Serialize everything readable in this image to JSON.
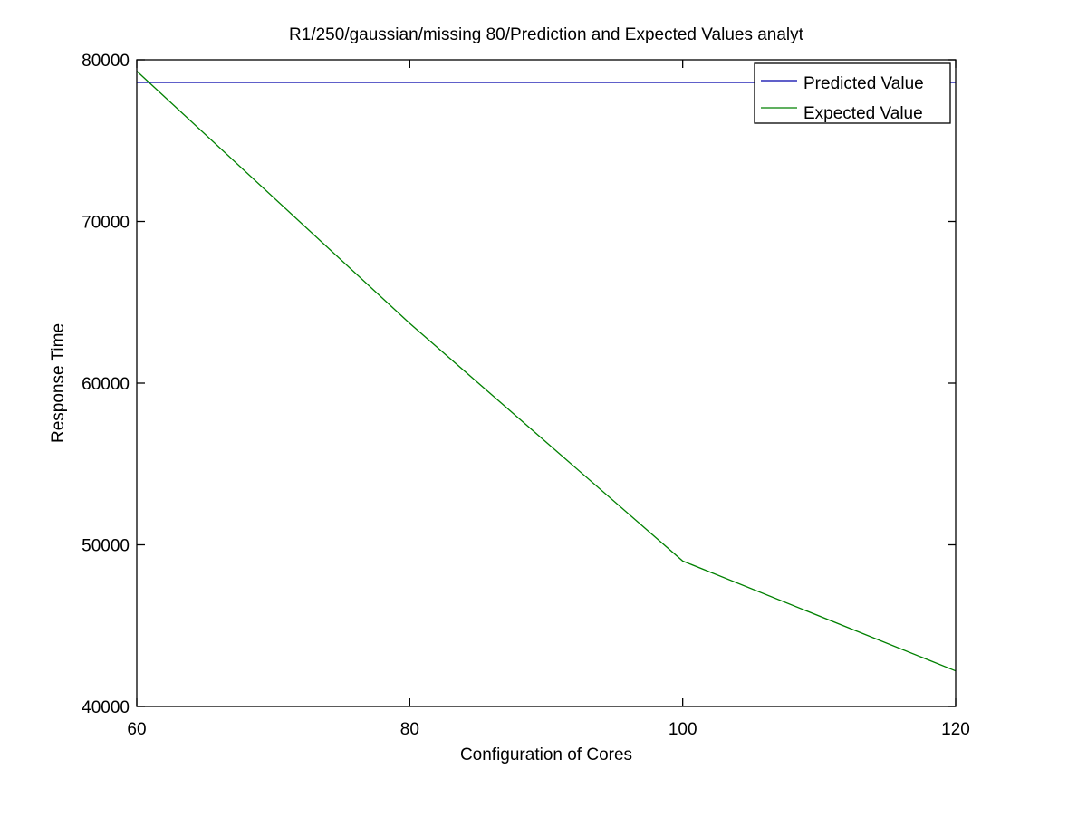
{
  "chart_data": {
    "type": "line",
    "title": "R1/250/gaussian/missing 80/Prediction and Expected Values analyt",
    "xlabel": "Configuration of Cores",
    "ylabel": "Response Time",
    "xlim": [
      60,
      120
    ],
    "ylim": [
      40000,
      80000
    ],
    "xticks": [
      60,
      80,
      100,
      120
    ],
    "yticks": [
      40000,
      50000,
      60000,
      70000,
      80000
    ],
    "xtick_labels": [
      "60",
      "80",
      "100",
      "120"
    ],
    "ytick_labels": [
      "40000",
      "50000",
      "60000",
      "70000",
      "80000"
    ],
    "grid": false,
    "legend_position": "top-right",
    "series": [
      {
        "name": "Predicted Value",
        "color": "#0000aa",
        "x": [
          60,
          120
        ],
        "y": [
          78600,
          78600
        ]
      },
      {
        "name": "Expected Value",
        "color": "#008000",
        "x": [
          60,
          80,
          100,
          120
        ],
        "y": [
          79300,
          63700,
          49000,
          42200
        ]
      }
    ]
  }
}
